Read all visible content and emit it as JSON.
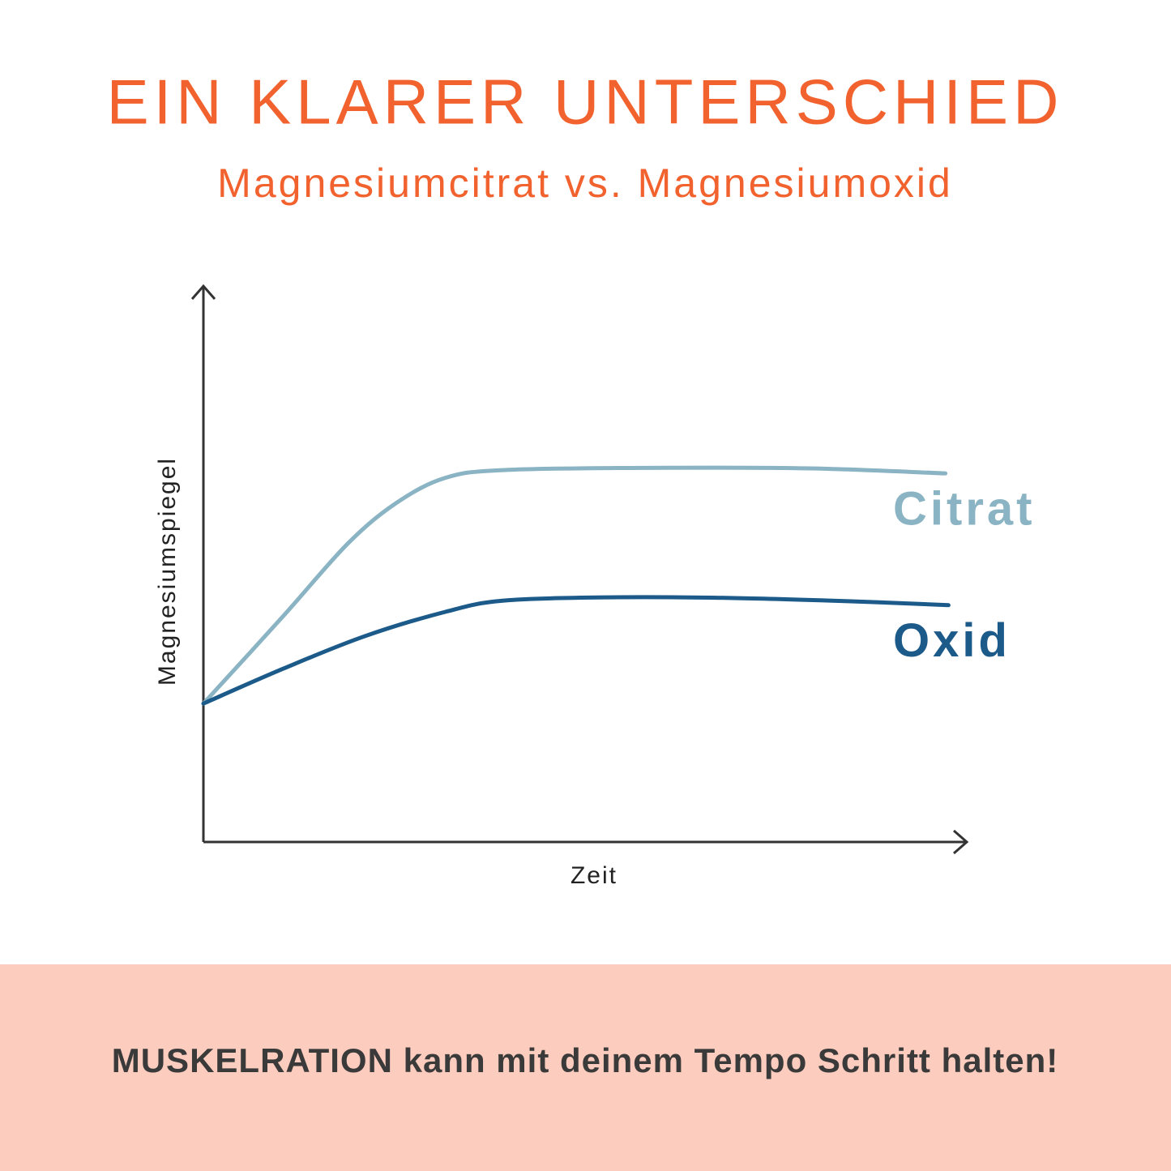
{
  "chart_data": {
    "type": "line",
    "title": "EIN KLARER UNTERSCHIED",
    "subtitle": "Magnesiumcitrat vs. Magnesiumoxid",
    "y_label": "Magnesiumspiegel",
    "x_label": "Zeit",
    "xlim": [
      0,
      100
    ],
    "ylim": [
      0,
      100
    ],
    "series": [
      {
        "name": "Citrat",
        "color": "#8ab3c3",
        "x": [
          0,
          10.5,
          19,
          25.4,
          31.7,
          39.2,
          58.3,
          79.5,
          97.2
        ],
        "values": [
          24.9,
          40.7,
          53.8,
          61.1,
          65.5,
          66.9,
          67.3,
          67.2,
          66.3
        ]
      },
      {
        "name": "Oxid",
        "color": "#1c5a8a",
        "x": [
          0,
          10.5,
          21.1,
          31.7,
          39.2,
          53,
          68.9,
          84.8,
          97.6
        ],
        "values": [
          24.9,
          31.2,
          37.0,
          41.4,
          43.4,
          44.0,
          43.9,
          43.3,
          42.6
        ]
      }
    ]
  },
  "footer": {
    "text": "MUSKELRATION kann mit deinem Tempo Schritt halten!"
  }
}
